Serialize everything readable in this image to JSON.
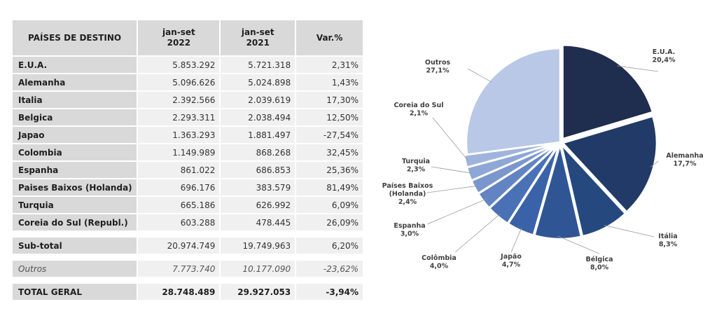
{
  "table": {
    "headers": [
      "PAÍSES DE DESTINO",
      "jan-set\n2022",
      "jan-set\n2021",
      "Var.%"
    ],
    "rows": [
      {
        "country": "E.U.A.",
        "y2022": "5.853.292",
        "y2021": "5.721.318",
        "var": "2,31%"
      },
      {
        "country": "Alemanha",
        "y2022": "5.096.626",
        "y2021": "5.024.898",
        "var": "1,43%"
      },
      {
        "country": "Italia",
        "y2022": "2.392.566",
        "y2021": "2.039.619",
        "var": "17,30%"
      },
      {
        "country": "Belgica",
        "y2022": "2.293.311",
        "y2021": "2.038.494",
        "var": "12,50%"
      },
      {
        "country": "Japao",
        "y2022": "1.363.293",
        "y2021": "1.881.497",
        "var": "-27,54%"
      },
      {
        "country": "Colombia",
        "y2022": "1.149.989",
        "y2021": "868.268",
        "var": "32,45%"
      },
      {
        "country": "Espanha",
        "y2022": "861.022",
        "y2021": "686.853",
        "var": "25,36%"
      },
      {
        "country": "Paises Baixos (Holanda)",
        "y2022": "696.176",
        "y2021": "383.579",
        "var": "81,49%"
      },
      {
        "country": "Turquia",
        "y2022": "665.186",
        "y2021": "626.992",
        "var": "6,09%"
      },
      {
        "country": "Coreia do Sul (Republ.)",
        "y2022": "603.288",
        "y2021": "478.445",
        "var": "26,09%"
      }
    ],
    "subtotal": {
      "country": "Sub-total",
      "y2022": "20.974.749",
      "y2021": "19.749.963",
      "var": "6,20%"
    },
    "outros": {
      "country": "Outros",
      "y2022": "7.773.740",
      "y2021": "10.177.090",
      "var": "-23,62%"
    },
    "total": {
      "country": "TOTAL GERAL",
      "y2022": "28.748.489",
      "y2021": "29.927.053",
      "var": "-3,94%"
    }
  },
  "chart_data": {
    "type": "pie",
    "title": "",
    "slices": [
      {
        "label": "E.U.A.",
        "value": 20.4,
        "text": "20,4%",
        "color": "#1f2d4e"
      },
      {
        "label": "Alemanha",
        "value": 17.7,
        "text": "17,7%",
        "color": "#223a67"
      },
      {
        "label": "Itália",
        "value": 8.3,
        "text": "8,3%",
        "color": "#25487f"
      },
      {
        "label": "Bélgica",
        "value": 8.0,
        "text": "8,0%",
        "color": "#2f5595"
      },
      {
        "label": "Japão",
        "value": 4.7,
        "text": "4,7%",
        "color": "#3a62a8"
      },
      {
        "label": "Colômbia",
        "value": 4.0,
        "text": "4,0%",
        "color": "#4a71b6"
      },
      {
        "label": "Espanha",
        "value": 3.0,
        "text": "3,0%",
        "color": "#6384c2"
      },
      {
        "label": "Países Baixos (Holanda)",
        "value": 2.4,
        "text": "2,4%",
        "color": "#7a96cc"
      },
      {
        "label": "Turquia",
        "value": 2.3,
        "text": "2,3%",
        "color": "#8ea7d6"
      },
      {
        "label": "Coreia do Sul",
        "value": 2.1,
        "text": "2,1%",
        "color": "#9fb4dd"
      },
      {
        "label": "Outros",
        "value": 27.1,
        "text": "27,1%",
        "color": "#b8c8e6"
      }
    ]
  }
}
